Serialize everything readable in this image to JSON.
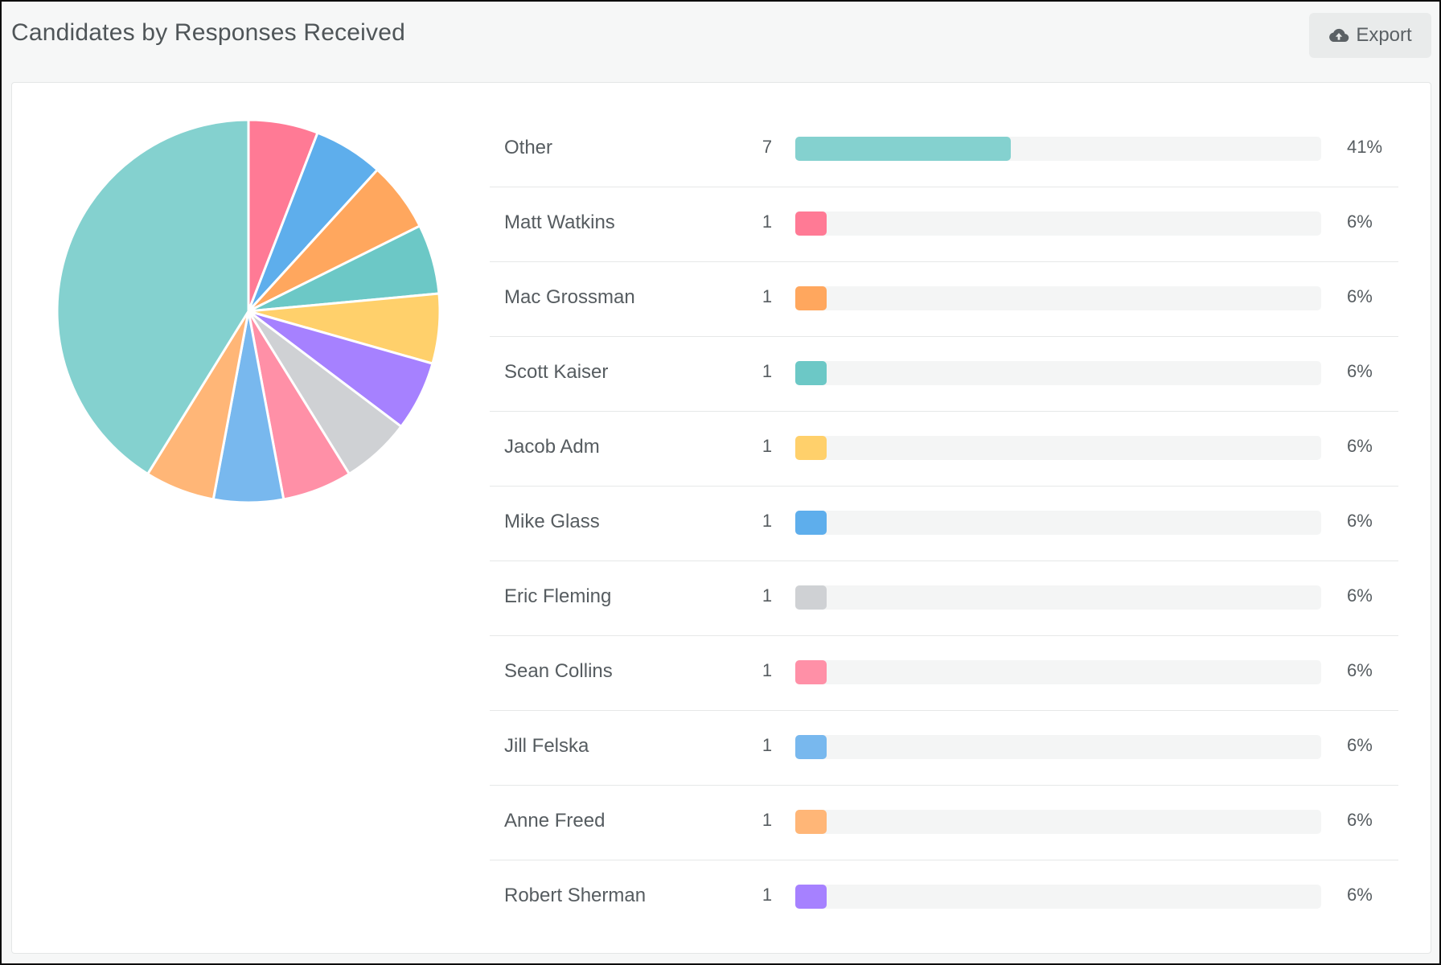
{
  "widget": {
    "title": "Candidates by Responses Received",
    "export_label": "Export",
    "export_icon": "cloud-upload-icon"
  },
  "chart_data": {
    "type": "pie",
    "title": "Candidates by Responses Received",
    "categories": [
      "Other",
      "Matt Watkins",
      "Mac Grossman",
      "Scott Kaiser",
      "Jacob Adm",
      "Mike Glass",
      "Eric Fleming",
      "Sean Collins",
      "Jill Felska",
      "Anne Freed",
      "Robert Sherman"
    ],
    "values": [
      7,
      1,
      1,
      1,
      1,
      1,
      1,
      1,
      1,
      1,
      1
    ],
    "percent_labels": [
      "41%",
      "6%",
      "6%",
      "6%",
      "6%",
      "6%",
      "6%",
      "6%",
      "6%",
      "6%",
      "6%"
    ],
    "percents": [
      41,
      6,
      6,
      6,
      6,
      6,
      6,
      6,
      6,
      6,
      6
    ],
    "colors": [
      "#84d1cf",
      "#ff7a95",
      "#ffa75e",
      "#6cc8c6",
      "#ffd06b",
      "#5eaeec",
      "#cfd1d4",
      "#ff90a7",
      "#78b8ee",
      "#ffb677",
      "#a681ff"
    ],
    "pie_slice_order": [
      1,
      5,
      2,
      3,
      4,
      10,
      6,
      7,
      8,
      9,
      0
    ]
  }
}
